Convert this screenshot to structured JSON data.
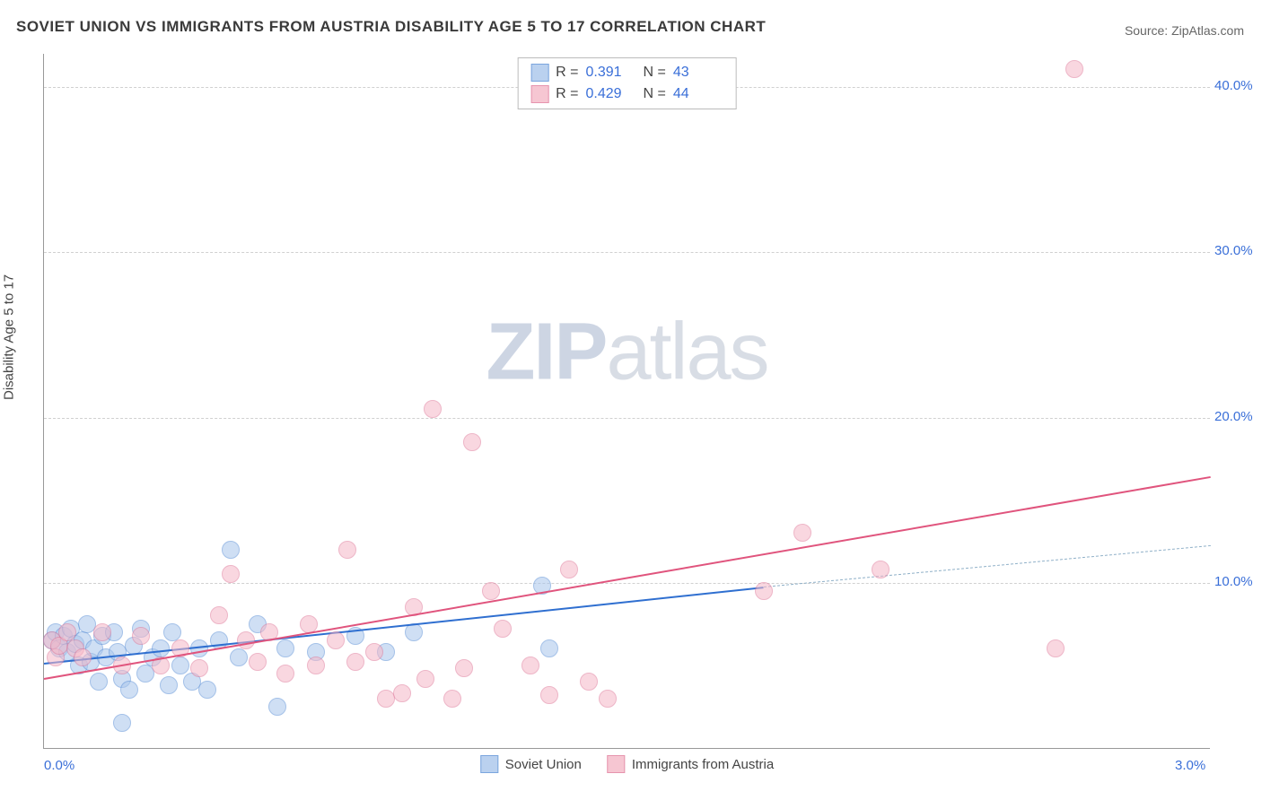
{
  "title": "SOVIET UNION VS IMMIGRANTS FROM AUSTRIA DISABILITY AGE 5 TO 17 CORRELATION CHART",
  "source": "Source: ZipAtlas.com",
  "watermark_bold": "ZIP",
  "watermark_light": "atlas",
  "ylabel": "Disability Age 5 to 17",
  "chart": {
    "type": "scatter",
    "xlim": [
      0.0,
      3.0
    ],
    "ylim": [
      0.0,
      42.0
    ],
    "xticks": [
      {
        "v": 0.0,
        "label": "0.0%"
      },
      {
        "v": 3.0,
        "label": "3.0%"
      }
    ],
    "yticks": [
      {
        "v": 10.0,
        "label": "10.0%"
      },
      {
        "v": 20.0,
        "label": "20.0%"
      },
      {
        "v": 30.0,
        "label": "30.0%"
      },
      {
        "v": 40.0,
        "label": "40.0%"
      }
    ],
    "grid_color": "#d0d0d0",
    "background_color": "#ffffff",
    "series": [
      {
        "name": "Soviet Union",
        "label": "Soviet Union",
        "fill": "#a9c6ec",
        "stroke": "#5a8fd6",
        "fill_opacity": 0.55,
        "marker_radius": 10,
        "R": "0.391",
        "N": "43",
        "trend": {
          "x1": 0.0,
          "y1": 5.2,
          "x2": 1.85,
          "y2": 9.8,
          "color": "#2f6fd0",
          "width": 2,
          "dash": false
        },
        "trend_ext": {
          "x1": 1.85,
          "y1": 9.8,
          "x2": 3.0,
          "y2": 12.3,
          "color": "#8fb0c8",
          "width": 1,
          "dash": true
        },
        "points": [
          [
            0.02,
            6.5
          ],
          [
            0.03,
            7.0
          ],
          [
            0.04,
            6.0
          ],
          [
            0.05,
            6.8
          ],
          [
            0.06,
            5.8
          ],
          [
            0.07,
            7.2
          ],
          [
            0.08,
            6.3
          ],
          [
            0.09,
            5.0
          ],
          [
            0.1,
            6.5
          ],
          [
            0.11,
            7.5
          ],
          [
            0.12,
            5.2
          ],
          [
            0.13,
            6.0
          ],
          [
            0.14,
            4.0
          ],
          [
            0.15,
            6.8
          ],
          [
            0.16,
            5.5
          ],
          [
            0.18,
            7.0
          ],
          [
            0.19,
            5.8
          ],
          [
            0.2,
            4.2
          ],
          [
            0.22,
            3.5
          ],
          [
            0.23,
            6.2
          ],
          [
            0.25,
            7.2
          ],
          [
            0.26,
            4.5
          ],
          [
            0.28,
            5.5
          ],
          [
            0.3,
            6.0
          ],
          [
            0.32,
            3.8
          ],
          [
            0.33,
            7.0
          ],
          [
            0.35,
            5.0
          ],
          [
            0.38,
            4.0
          ],
          [
            0.4,
            6.0
          ],
          [
            0.42,
            3.5
          ],
          [
            0.45,
            6.5
          ],
          [
            0.48,
            12.0
          ],
          [
            0.5,
            5.5
          ],
          [
            0.55,
            7.5
          ],
          [
            0.6,
            2.5
          ],
          [
            0.62,
            6.0
          ],
          [
            0.7,
            5.8
          ],
          [
            0.8,
            6.8
          ],
          [
            0.88,
            5.8
          ],
          [
            0.95,
            7.0
          ],
          [
            1.28,
            9.8
          ],
          [
            1.3,
            6.0
          ],
          [
            0.2,
            1.5
          ]
        ]
      },
      {
        "name": "Immigrants from Austria",
        "label": "Immigrants from Austria",
        "fill": "#f5b8c8",
        "stroke": "#e07a9a",
        "fill_opacity": 0.55,
        "marker_radius": 10,
        "R": "0.429",
        "N": "44",
        "trend": {
          "x1": 0.0,
          "y1": 4.3,
          "x2": 3.0,
          "y2": 16.5,
          "color": "#e0547d",
          "width": 2,
          "dash": false
        },
        "points": [
          [
            0.02,
            6.5
          ],
          [
            0.03,
            5.5
          ],
          [
            0.04,
            6.2
          ],
          [
            0.06,
            7.0
          ],
          [
            0.08,
            6.0
          ],
          [
            0.1,
            5.5
          ],
          [
            0.15,
            7.0
          ],
          [
            0.2,
            5.0
          ],
          [
            0.25,
            6.8
          ],
          [
            0.3,
            5.0
          ],
          [
            0.35,
            6.0
          ],
          [
            0.4,
            4.8
          ],
          [
            0.45,
            8.0
          ],
          [
            0.48,
            10.5
          ],
          [
            0.52,
            6.5
          ],
          [
            0.55,
            5.2
          ],
          [
            0.58,
            7.0
          ],
          [
            0.62,
            4.5
          ],
          [
            0.68,
            7.5
          ],
          [
            0.7,
            5.0
          ],
          [
            0.75,
            6.5
          ],
          [
            0.78,
            12.0
          ],
          [
            0.8,
            5.2
          ],
          [
            0.85,
            5.8
          ],
          [
            0.88,
            3.0
          ],
          [
            0.92,
            3.3
          ],
          [
            0.95,
            8.5
          ],
          [
            0.98,
            4.2
          ],
          [
            1.0,
            20.5
          ],
          [
            1.05,
            3.0
          ],
          [
            1.08,
            4.8
          ],
          [
            1.1,
            18.5
          ],
          [
            1.15,
            9.5
          ],
          [
            1.18,
            7.2
          ],
          [
            1.25,
            5.0
          ],
          [
            1.3,
            3.2
          ],
          [
            1.35,
            10.8
          ],
          [
            1.4,
            4.0
          ],
          [
            1.45,
            3.0
          ],
          [
            1.85,
            9.5
          ],
          [
            1.95,
            13.0
          ],
          [
            2.15,
            10.8
          ],
          [
            2.6,
            6.0
          ],
          [
            2.65,
            41.0
          ]
        ]
      }
    ]
  },
  "legend_top": {
    "r_label": "R  =",
    "n_label": "N  ="
  }
}
